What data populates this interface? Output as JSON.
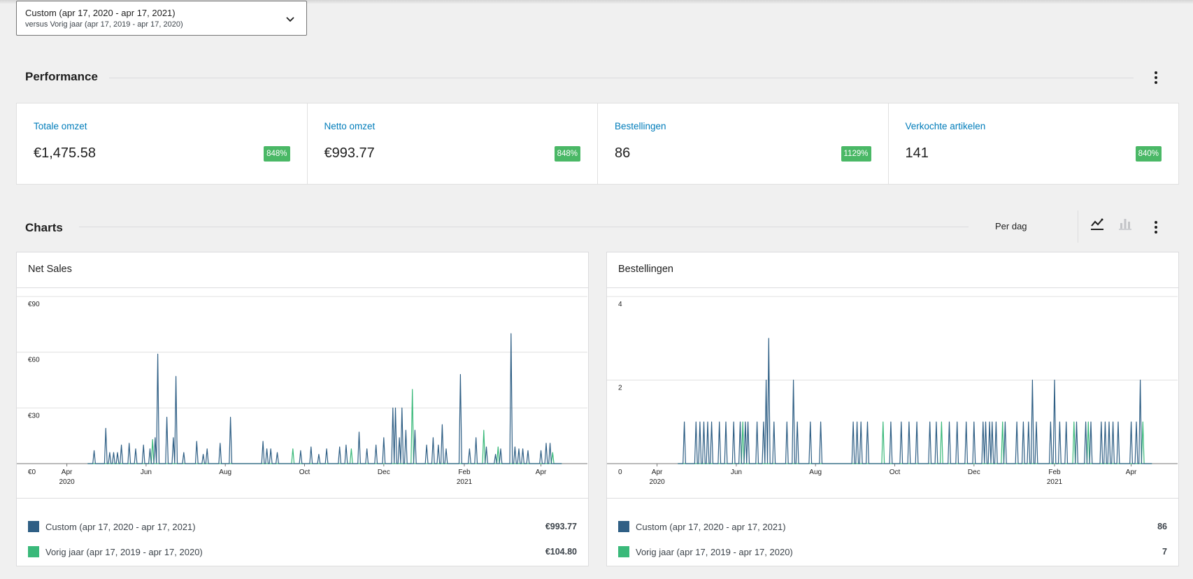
{
  "date_range": {
    "primary": "Custom (apr 17, 2020 - apr 17, 2021)",
    "secondary": "versus Vorig jaar (apr 17, 2019 - apr 17, 2020)"
  },
  "performance": {
    "title": "Performance",
    "items": [
      {
        "label": "Totale omzet",
        "value": "€1,475.58",
        "delta": "848%"
      },
      {
        "label": "Netto omzet",
        "value": "€993.77",
        "delta": "848%"
      },
      {
        "label": "Bestellingen",
        "value": "86",
        "delta": "1129%"
      },
      {
        "label": "Verkochte artikelen",
        "value": "141",
        "delta": "840%"
      }
    ]
  },
  "charts_section": {
    "title": "Charts",
    "interval": "Per dag"
  },
  "icons": {
    "dropdown": "chevron-down-icon",
    "menu": "more-vertical-icon",
    "line_chart": "line-chart-icon",
    "bar_chart": "bar-chart-icon"
  },
  "colors": {
    "primary_series": "#2f5f85",
    "secondary_series": "#3ab97a",
    "link": "#007cba",
    "badge": "#4ab866"
  },
  "chart_data": [
    {
      "type": "line",
      "title": "Net Sales",
      "y_ticks": [
        "€0",
        "€30",
        "€60",
        "€90"
      ],
      "ylim": [
        0,
        90
      ],
      "x_ticks": [
        {
          "label": "Apr",
          "year": "2020",
          "date": "2020-04-01"
        },
        {
          "label": "Jun",
          "year": "",
          "date": "2020-06-01"
        },
        {
          "label": "Aug",
          "year": "",
          "date": "2020-08-01"
        },
        {
          "label": "Oct",
          "year": "",
          "date": "2020-10-01"
        },
        {
          "label": "Dec",
          "year": "",
          "date": "2020-12-01"
        },
        {
          "label": "Feb",
          "year": "2021",
          "date": "2021-02-01"
        },
        {
          "label": "Apr",
          "year": "",
          "date": "2021-04-01"
        }
      ],
      "x_range": [
        "2020-03-01",
        "2021-04-26"
      ],
      "series": [
        {
          "name": "Custom (apr 17, 2020 - apr 17, 2021)",
          "total": "€993.77",
          "points": [
            [
              "2020-04-22",
              7
            ],
            [
              "2020-05-01",
              19
            ],
            [
              "2020-05-04",
              6
            ],
            [
              "2020-05-07",
              6
            ],
            [
              "2020-05-10",
              6
            ],
            [
              "2020-05-13",
              10
            ],
            [
              "2020-05-19",
              11
            ],
            [
              "2020-05-24",
              8
            ],
            [
              "2020-05-30",
              10
            ],
            [
              "2020-06-04",
              8
            ],
            [
              "2020-06-08",
              14
            ],
            [
              "2020-06-10",
              59
            ],
            [
              "2020-06-17",
              25
            ],
            [
              "2020-06-22",
              14
            ],
            [
              "2020-06-24",
              47
            ],
            [
              "2020-06-30",
              6
            ],
            [
              "2020-07-10",
              12
            ],
            [
              "2020-07-15",
              5
            ],
            [
              "2020-07-18",
              8
            ],
            [
              "2020-07-28",
              11
            ],
            [
              "2020-08-05",
              25
            ],
            [
              "2020-08-30",
              12
            ],
            [
              "2020-09-02",
              8
            ],
            [
              "2020-09-05",
              8
            ],
            [
              "2020-09-10",
              6
            ],
            [
              "2020-09-28",
              7
            ],
            [
              "2020-10-06",
              9
            ],
            [
              "2020-10-12",
              5
            ],
            [
              "2020-10-18",
              8
            ],
            [
              "2020-10-28",
              9
            ],
            [
              "2020-11-02",
              10
            ],
            [
              "2020-11-12",
              17
            ],
            [
              "2020-11-18",
              8
            ],
            [
              "2020-11-25",
              10
            ],
            [
              "2020-12-01",
              14
            ],
            [
              "2020-12-08",
              30
            ],
            [
              "2020-12-10",
              30
            ],
            [
              "2020-12-13",
              14
            ],
            [
              "2020-12-15",
              30
            ],
            [
              "2020-12-18",
              18
            ],
            [
              "2020-12-25",
              18
            ],
            [
              "2021-01-03",
              10
            ],
            [
              "2021-01-08",
              14
            ],
            [
              "2021-01-12",
              10
            ],
            [
              "2021-01-15",
              21
            ],
            [
              "2021-01-18",
              8
            ],
            [
              "2021-01-29",
              48
            ],
            [
              "2021-02-05",
              8
            ],
            [
              "2021-02-10",
              14
            ],
            [
              "2021-02-18",
              9
            ],
            [
              "2021-02-25",
              5
            ],
            [
              "2021-03-01",
              8
            ],
            [
              "2021-03-09",
              70
            ],
            [
              "2021-03-12",
              9
            ],
            [
              "2021-03-15",
              8
            ],
            [
              "2021-03-18",
              8
            ],
            [
              "2021-03-22",
              7
            ],
            [
              "2021-04-01",
              7
            ],
            [
              "2021-04-05",
              11
            ],
            [
              "2021-04-08",
              11
            ]
          ]
        },
        {
          "name": "Vorig jaar (apr 17, 2019 - apr 17, 2020)",
          "total": "€104.80",
          "points": [
            [
              "2020-06-06",
              13
            ],
            [
              "2020-09-22",
              8
            ],
            [
              "2020-11-06",
              8
            ],
            [
              "2020-12-23",
              40
            ],
            [
              "2021-02-16",
              18
            ],
            [
              "2021-02-27",
              9
            ],
            [
              "2021-04-10",
              6
            ]
          ]
        }
      ]
    },
    {
      "type": "line",
      "title": "Bestellingen",
      "y_ticks": [
        "0",
        "2",
        "4"
      ],
      "ylim": [
        0,
        4
      ],
      "x_ticks": [
        {
          "label": "Apr",
          "year": "2020",
          "date": "2020-04-01"
        },
        {
          "label": "Jun",
          "year": "",
          "date": "2020-06-01"
        },
        {
          "label": "Aug",
          "year": "",
          "date": "2020-08-01"
        },
        {
          "label": "Oct",
          "year": "",
          "date": "2020-10-01"
        },
        {
          "label": "Dec",
          "year": "",
          "date": "2020-12-01"
        },
        {
          "label": "Feb",
          "year": "2021",
          "date": "2021-02-01"
        },
        {
          "label": "Apr",
          "year": "",
          "date": "2021-04-01"
        }
      ],
      "x_range": [
        "2020-03-01",
        "2021-04-26"
      ],
      "series": [
        {
          "name": "Custom (apr 17, 2020 - apr 17, 2021)",
          "total": "86",
          "points": [
            [
              "2020-04-22",
              1
            ],
            [
              "2020-05-01",
              1
            ],
            [
              "2020-05-04",
              1
            ],
            [
              "2020-05-07",
              1
            ],
            [
              "2020-05-10",
              1
            ],
            [
              "2020-05-13",
              1
            ],
            [
              "2020-05-19",
              1
            ],
            [
              "2020-05-24",
              1
            ],
            [
              "2020-05-30",
              1
            ],
            [
              "2020-06-04",
              1
            ],
            [
              "2020-06-08",
              1
            ],
            [
              "2020-06-10",
              1
            ],
            [
              "2020-06-17",
              1
            ],
            [
              "2020-06-22",
              1
            ],
            [
              "2020-06-24",
              2
            ],
            [
              "2020-06-26",
              3
            ],
            [
              "2020-06-30",
              1
            ],
            [
              "2020-07-10",
              1
            ],
            [
              "2020-07-15",
              2
            ],
            [
              "2020-07-18",
              1
            ],
            [
              "2020-07-28",
              1
            ],
            [
              "2020-08-05",
              1
            ],
            [
              "2020-08-30",
              1
            ],
            [
              "2020-09-02",
              1
            ],
            [
              "2020-09-05",
              1
            ],
            [
              "2020-09-10",
              1
            ],
            [
              "2020-09-28",
              1
            ],
            [
              "2020-10-06",
              1
            ],
            [
              "2020-10-12",
              1
            ],
            [
              "2020-10-18",
              1
            ],
            [
              "2020-10-28",
              1
            ],
            [
              "2020-11-02",
              1
            ],
            [
              "2020-11-12",
              1
            ],
            [
              "2020-11-18",
              1
            ],
            [
              "2020-11-25",
              1
            ],
            [
              "2020-12-01",
              1
            ],
            [
              "2020-12-08",
              1
            ],
            [
              "2020-12-10",
              1
            ],
            [
              "2020-12-13",
              1
            ],
            [
              "2020-12-15",
              1
            ],
            [
              "2020-12-18",
              1
            ],
            [
              "2020-12-25",
              1
            ],
            [
              "2021-01-03",
              1
            ],
            [
              "2021-01-08",
              1
            ],
            [
              "2021-01-12",
              1
            ],
            [
              "2021-01-15",
              2
            ],
            [
              "2021-01-18",
              1
            ],
            [
              "2021-01-29",
              1
            ],
            [
              "2021-02-01",
              2
            ],
            [
              "2021-02-05",
              1
            ],
            [
              "2021-02-10",
              1
            ],
            [
              "2021-02-18",
              1
            ],
            [
              "2021-02-25",
              1
            ],
            [
              "2021-03-01",
              1
            ],
            [
              "2021-03-09",
              1
            ],
            [
              "2021-03-12",
              1
            ],
            [
              "2021-03-15",
              1
            ],
            [
              "2021-03-18",
              1
            ],
            [
              "2021-03-22",
              1
            ],
            [
              "2021-04-01",
              1
            ],
            [
              "2021-04-05",
              1
            ],
            [
              "2021-04-08",
              2
            ]
          ]
        },
        {
          "name": "Vorig jaar (apr 17, 2019 - apr 17, 2020)",
          "total": "7",
          "points": [
            [
              "2020-06-06",
              1
            ],
            [
              "2020-09-22",
              1
            ],
            [
              "2020-11-06",
              1
            ],
            [
              "2020-12-23",
              1
            ],
            [
              "2021-02-16",
              1
            ],
            [
              "2021-02-27",
              1
            ],
            [
              "2021-04-10",
              1
            ]
          ]
        }
      ]
    }
  ]
}
